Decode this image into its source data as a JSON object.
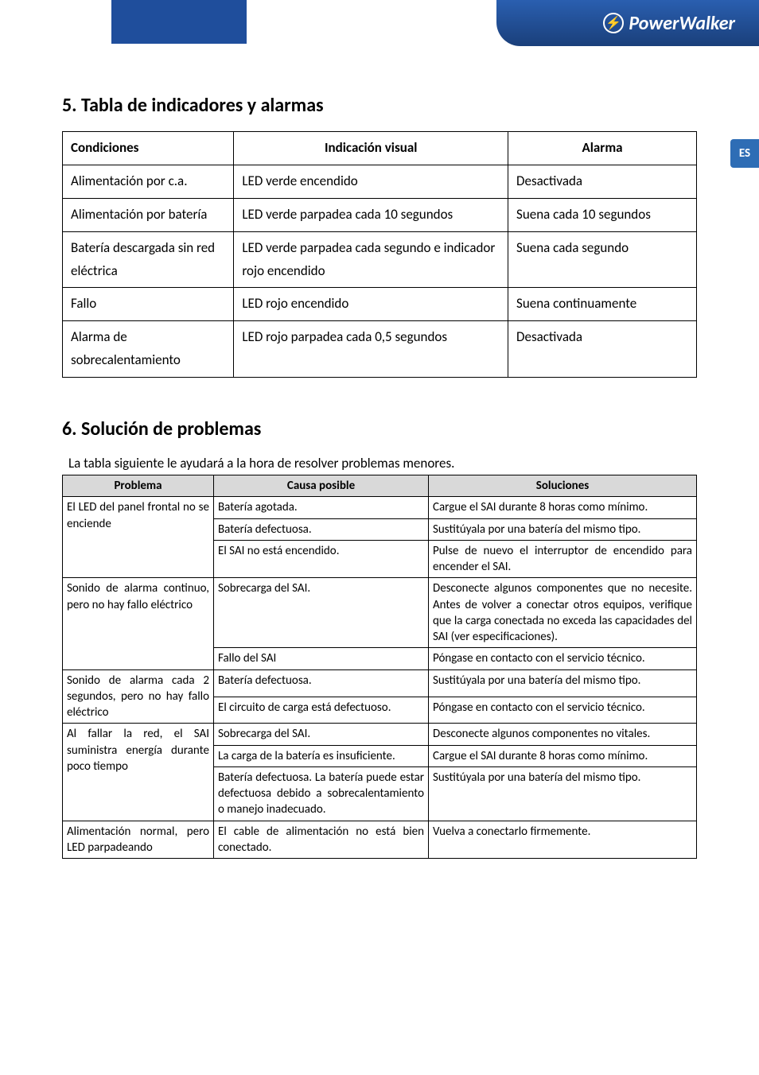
{
  "brand": "PowerWalker",
  "side_badge": "ES",
  "section5": {
    "title": "5. Tabla de indicadores y alarmas",
    "headers": [
      "Condiciones",
      "Indicación visual",
      "Alarma"
    ],
    "rows": [
      [
        "Alimentación por c.a.",
        "LED verde encendido",
        "Desactivada"
      ],
      [
        "Alimentación por batería",
        "LED verde parpadea cada 10 segundos",
        "Suena cada 10 segundos"
      ],
      [
        "Batería descargada sin red eléctrica",
        "LED verde parpadea cada segundo e indicador rojo encendido",
        "Suena cada segundo"
      ],
      [
        "Fallo",
        "LED rojo encendido",
        "Suena continuamente"
      ],
      [
        "Alarma de sobrecalentamiento",
        "LED rojo parpadea cada 0,5 segundos",
        "Desactivada"
      ]
    ]
  },
  "section6": {
    "title": "6. Solución de problemas",
    "intro": "La tabla siguiente le ayudará a la hora de resolver problemas menores.",
    "headers": [
      "Problema",
      "Causa posible",
      "Soluciones"
    ],
    "groups": [
      {
        "problem": "El LED del panel frontal no se enciende",
        "rows": [
          [
            "Batería agotada.",
            "Cargue el SAI durante 8 horas como mínimo."
          ],
          [
            "Batería defectuosa.",
            "Sustitúyala por una batería del mismo tipo."
          ],
          [
            "El SAI no está encendido.",
            "Pulse de nuevo el interruptor de encendido para encender el SAI."
          ]
        ]
      },
      {
        "problem": "Sonido de alarma continuo, pero no hay fallo eléctrico",
        "rows": [
          [
            "Sobrecarga del SAI.",
            "Desconecte algunos componentes que no necesite. Antes de volver a conectar otros equipos, verifique que la carga conectada no exceda las capacidades del SAI (ver especificaciones)."
          ],
          [
            "Fallo del SAI",
            "Póngase en contacto con el servicio técnico."
          ]
        ]
      },
      {
        "problem": "Sonido de alarma cada 2 segundos, pero no hay fallo eléctrico",
        "rows": [
          [
            "Batería defectuosa.",
            "Sustitúyala por una batería del mismo tipo."
          ],
          [
            "El circuito de carga está defectuoso.",
            "Póngase en contacto con el servicio técnico."
          ]
        ]
      },
      {
        "problem": "Al fallar la red, el SAI suministra energía durante poco tiempo",
        "rows": [
          [
            "Sobrecarga del SAI.",
            "Desconecte algunos componentes no vitales."
          ],
          [
            "La carga de la batería es insuficiente.",
            "Cargue el SAI durante 8 horas como mínimo."
          ],
          [
            "Batería defectuosa. La batería puede estar defectuosa debido a sobrecalentamiento o manejo inadecuado.",
            "Sustitúyala por una batería del mismo tipo."
          ]
        ]
      },
      {
        "problem": "Alimentación normal, pero LED parpadeando",
        "rows": [
          [
            "El cable de alimentación no está bien conectado.",
            "Vuelva a conectarlo firmemente."
          ]
        ]
      }
    ]
  }
}
